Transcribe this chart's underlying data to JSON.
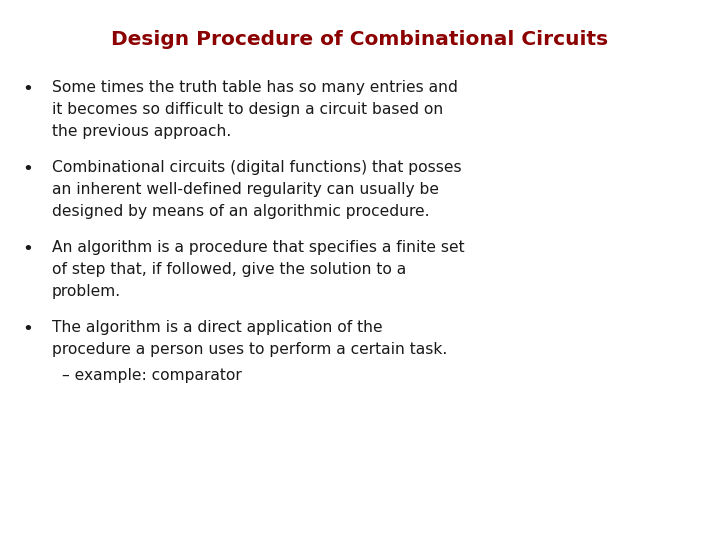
{
  "title": "Design Procedure of Combinational Circuits",
  "title_color": "#8B0000",
  "background_color": "#FFFFFF",
  "bullet_color": "#1a1a1a",
  "bullets": [
    [
      "Some times the truth table has so many entries and",
      "it becomes so difficult to design a circuit based on",
      "the previous approach."
    ],
    [
      "Combinational circuits (digital functions) that posses",
      "an inherent well-defined regularity can usually be",
      "designed by means of an algorithmic procedure."
    ],
    [
      "An algorithm is a procedure that specifies a finite set",
      "of step that, if followed, give the solution to a",
      "problem."
    ],
    [
      "The algorithm is a direct application of the",
      "procedure a person uses to perform a certain task."
    ]
  ],
  "sub_bullet": "– example: comparator",
  "title_fontsize": 14.5,
  "bullet_fontsize": 11.2,
  "sub_bullet_fontsize": 11.2,
  "font_family": "DejaVu Sans"
}
